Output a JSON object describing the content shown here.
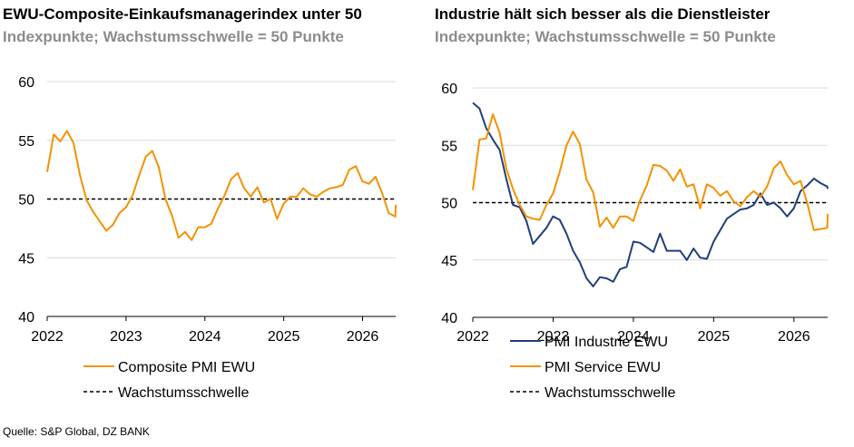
{
  "colors": {
    "orange": "#f39200",
    "navy": "#1f3f7a",
    "grid": "#d9d9d9",
    "subtitle": "#8c8c8c"
  },
  "left": {
    "title": "EWU-Composite-Einkaufsmanagerindex unter 50",
    "subtitle": "Indexpunkte; Wachstumsschwelle = 50 Punkte"
  },
  "right": {
    "title": "Industrie hält sich besser als die Dienstleister",
    "subtitle": "Indexpunkte; Wachstumsschwelle = 50 Punkte"
  },
  "source": "Quelle: S&P Global, DZ BANK",
  "chart_data": [
    {
      "type": "line",
      "title": "EWU-Composite-Einkaufsmanagerindex unter 50",
      "subtitle": "Indexpunkte; Wachstumsschwelle = 50 Punkte",
      "x_start": 2022.0,
      "x_step": 0.0833,
      "xlim": [
        2022.0,
        2026.42
      ],
      "ylim": [
        40,
        60
      ],
      "yticks": [
        40,
        45,
        50,
        55,
        60
      ],
      "xticks": [
        "2022",
        "2023",
        "2024",
        "2025",
        "2026"
      ],
      "grid": true,
      "legend_position": "bottom",
      "threshold": {
        "name": "Wachstumsschwelle",
        "value": 50
      },
      "series": [
        {
          "name": "Composite PMI EWU",
          "color": "#f39200",
          "values": [
            52.3,
            55.5,
            54.9,
            55.8,
            54.8,
            52.0,
            49.9,
            48.9,
            48.1,
            47.3,
            47.8,
            48.8,
            49.3,
            50.3,
            52.0,
            53.6,
            54.1,
            52.7,
            50.0,
            48.6,
            46.7,
            47.2,
            46.5,
            47.6,
            47.6,
            47.9,
            49.2,
            50.3,
            51.7,
            52.2,
            50.9,
            50.2,
            51.0,
            49.7,
            50.0,
            48.3,
            49.6,
            50.2,
            50.2,
            50.9,
            50.4,
            50.2,
            50.6,
            50.9,
            51.0,
            51.2,
            52.5,
            52.8,
            51.5,
            51.3,
            51.9,
            50.5,
            48.8,
            48.5,
            49.5
          ]
        }
      ]
    },
    {
      "type": "line",
      "title": "Industrie hält sich besser als die Dienstleister",
      "subtitle": "Indexpunkte; Wachstumsschwelle = 50 Punkte",
      "x_start": 2022.0,
      "x_step": 0.0833,
      "xlim": [
        2022.0,
        2026.42
      ],
      "ylim": [
        40,
        60
      ],
      "yticks": [
        40,
        45,
        50,
        55,
        60
      ],
      "xticks": [
        "2022",
        "2023",
        "2024",
        "2025",
        "2026"
      ],
      "grid": true,
      "legend_position": "bottom",
      "threshold": {
        "name": "Wachstumsschwelle",
        "value": 50
      },
      "series": [
        {
          "name": "PMI Industrie EWU",
          "color": "#1f3f7a",
          "values": [
            58.7,
            58.2,
            56.5,
            55.5,
            54.6,
            52.1,
            49.8,
            49.6,
            48.4,
            46.4,
            47.1,
            47.8,
            48.8,
            48.5,
            47.3,
            45.8,
            44.8,
            43.4,
            42.7,
            43.5,
            43.4,
            43.1,
            44.2,
            44.4,
            46.6,
            46.5,
            46.1,
            45.7,
            47.3,
            45.8,
            45.8,
            45.8,
            45.0,
            46.0,
            45.2,
            45.1,
            46.6,
            47.6,
            48.6,
            49.0,
            49.4,
            49.5,
            49.8,
            50.8,
            49.8,
            50.0,
            49.5,
            48.8,
            49.5,
            51.0,
            51.5,
            52.1,
            51.7,
            51.4,
            51.2
          ]
        },
        {
          "name": "PMI Service EWU",
          "color": "#f39200",
          "values": [
            51.1,
            55.5,
            55.6,
            57.7,
            56.1,
            53.0,
            51.2,
            49.8,
            48.8,
            48.6,
            48.5,
            49.8,
            50.8,
            52.7,
            55.0,
            56.2,
            55.1,
            52.0,
            50.9,
            47.9,
            48.7,
            47.8,
            48.8,
            48.8,
            48.4,
            50.2,
            51.5,
            53.3,
            53.2,
            52.8,
            51.9,
            52.9,
            51.4,
            51.6,
            49.5,
            51.6,
            51.3,
            50.6,
            51.0,
            50.1,
            49.7,
            50.5,
            51.0,
            50.5,
            51.4,
            53.0,
            53.6,
            52.4,
            51.6,
            51.9,
            50.0,
            47.6,
            47.7,
            47.8,
            49.0
          ]
        }
      ]
    }
  ]
}
